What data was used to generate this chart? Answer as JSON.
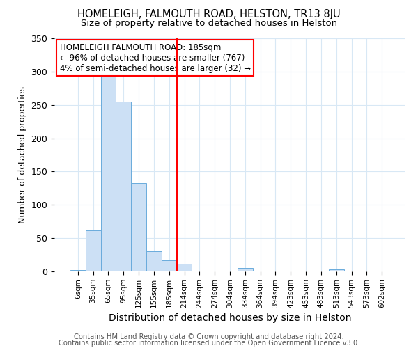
{
  "title": "HOMELEIGH, FALMOUTH ROAD, HELSTON, TR13 8JU",
  "subtitle": "Size of property relative to detached houses in Helston",
  "xlabel": "Distribution of detached houses by size in Helston",
  "ylabel": "Number of detached properties",
  "categories": [
    "6sqm",
    "35sqm",
    "65sqm",
    "95sqm",
    "125sqm",
    "155sqm",
    "185sqm",
    "214sqm",
    "244sqm",
    "274sqm",
    "304sqm",
    "334sqm",
    "364sqm",
    "394sqm",
    "423sqm",
    "453sqm",
    "483sqm",
    "513sqm",
    "543sqm",
    "573sqm",
    "602sqm"
  ],
  "values": [
    2,
    62,
    293,
    255,
    133,
    30,
    17,
    11,
    0,
    0,
    0,
    5,
    0,
    0,
    0,
    0,
    0,
    3,
    0,
    0,
    0
  ],
  "bar_color": "#cce0f5",
  "bar_edge_color": "#6aabdc",
  "red_line_x": 6.5,
  "ylim": [
    0,
    350
  ],
  "yticks": [
    0,
    50,
    100,
    150,
    200,
    250,
    300,
    350
  ],
  "annotation_title": "HOMELEIGH FALMOUTH ROAD: 185sqm",
  "annotation_line1": "← 96% of detached houses are smaller (767)",
  "annotation_line2": "4% of semi-detached houses are larger (32) →",
  "footer1": "Contains HM Land Registry data © Crown copyright and database right 2024.",
  "footer2": "Contains public sector information licensed under the Open Government Licence v3.0.",
  "background_color": "#ffffff",
  "grid_color": "#d8e8f5"
}
